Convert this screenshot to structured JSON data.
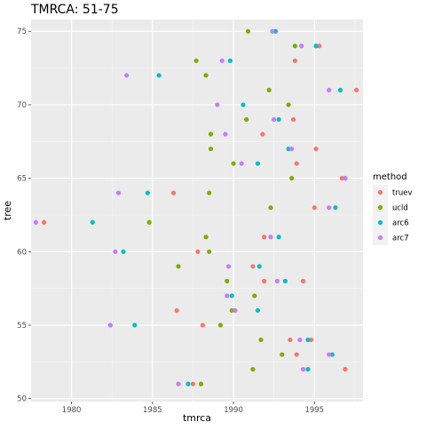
{
  "chart_data": {
    "type": "scatter",
    "title": "TMRCA: 51-75",
    "xlabel": "tmrca",
    "ylabel": "tree",
    "xlim": [
      1977.5,
      1998
    ],
    "ylim": [
      49.8,
      75.8
    ],
    "x_ticks": [
      1980,
      1985,
      1990,
      1995
    ],
    "x_tick_labels": [
      "1980",
      "1985",
      "1990",
      "1995"
    ],
    "y_ticks": [
      50,
      55,
      60,
      65,
      70,
      75
    ],
    "y_tick_labels": [
      "50",
      "55",
      "60",
      "65",
      "70",
      "75"
    ],
    "grid": true,
    "background": "#ebebeb",
    "legend": {
      "title": "method",
      "placement": "right",
      "entries": [
        {
          "name": "truev",
          "color": "#f8766d"
        },
        {
          "name": "ucld",
          "color": "#7cae00"
        },
        {
          "name": "arc6",
          "color": "#00bfc4"
        },
        {
          "name": "arc7",
          "color": "#c77cff"
        }
      ]
    },
    "series": [
      {
        "name": "truev",
        "color": "#f8766d",
        "points": [
          [
            1987.5,
            51
          ],
          [
            1996.9,
            52
          ],
          [
            1993.9,
            53
          ],
          [
            1994.8,
            54
          ],
          [
            1993.5,
            54
          ],
          [
            1988.1,
            55
          ],
          [
            1986.5,
            56
          ],
          [
            1994.3,
            58
          ],
          [
            1991.9,
            58
          ],
          [
            1991.2,
            59
          ],
          [
            1987.8,
            60
          ],
          [
            1991.9,
            61
          ],
          [
            1978.3,
            62
          ],
          [
            1995.0,
            63
          ],
          [
            1986.3,
            64
          ],
          [
            1996.7,
            65
          ],
          [
            1993.9,
            66
          ],
          [
            1995.1,
            67
          ],
          [
            1991.8,
            68
          ],
          [
            1993.7,
            69
          ],
          [
            1997.6,
            71
          ],
          [
            1993.8,
            73
          ],
          [
            1995.3,
            74
          ]
        ]
      },
      {
        "name": "ucld",
        "color": "#7cae00",
        "points": [
          [
            1988.0,
            51
          ],
          [
            1991.2,
            52
          ],
          [
            1993.0,
            53
          ],
          [
            1991.7,
            54
          ],
          [
            1989.2,
            55
          ],
          [
            1989.9,
            56
          ],
          [
            1991.3,
            57
          ],
          [
            1989.6,
            58
          ],
          [
            1986.6,
            59
          ],
          [
            1988.5,
            60
          ],
          [
            1988.3,
            61
          ],
          [
            1984.8,
            62
          ],
          [
            1992.3,
            63
          ],
          [
            1988.5,
            64
          ],
          [
            1993.6,
            65
          ],
          [
            1990.0,
            66
          ],
          [
            1988.6,
            67
          ],
          [
            1988.6,
            68
          ],
          [
            1990.8,
            69
          ],
          [
            1993.4,
            70
          ],
          [
            1992.2,
            71
          ],
          [
            1988.3,
            72
          ],
          [
            1987.7,
            73
          ],
          [
            1993.8,
            74
          ],
          [
            1990.9,
            75
          ]
        ]
      },
      {
        "name": "arc6",
        "color": "#00bfc4",
        "points": [
          [
            1987.2,
            51
          ],
          [
            1994.6,
            52
          ],
          [
            1996.1,
            53
          ],
          [
            1994.6,
            54
          ],
          [
            1983.9,
            55
          ],
          [
            1991.5,
            56
          ],
          [
            1989.9,
            57
          ],
          [
            1993.2,
            58
          ],
          [
            1991.6,
            59
          ],
          [
            1983.2,
            60
          ],
          [
            1992.8,
            61
          ],
          [
            1981.3,
            62
          ],
          [
            1996.3,
            63
          ],
          [
            1984.7,
            64
          ],
          [
            1996.9,
            65
          ],
          [
            1991.5,
            66
          ],
          [
            1993.4,
            67
          ],
          [
            1992.8,
            69
          ],
          [
            1990.6,
            70
          ],
          [
            1996.6,
            71
          ],
          [
            1985.4,
            72
          ],
          [
            1989.8,
            73
          ],
          [
            1995.1,
            74
          ],
          [
            1992.6,
            75
          ]
        ]
      },
      {
        "name": "arc7",
        "color": "#c77cff",
        "points": [
          [
            1986.6,
            51
          ],
          [
            1994.3,
            52
          ],
          [
            1995.9,
            53
          ],
          [
            1994.1,
            54
          ],
          [
            1982.4,
            55
          ],
          [
            1990.1,
            56
          ],
          [
            1989.6,
            57
          ],
          [
            1992.7,
            58
          ],
          [
            1989.7,
            59
          ],
          [
            1982.7,
            60
          ],
          [
            1992.3,
            61
          ],
          [
            1977.8,
            62
          ],
          [
            1995.9,
            63
          ],
          [
            1982.9,
            64
          ],
          [
            1996.9,
            65
          ],
          [
            1990.5,
            66
          ],
          [
            1993.6,
            67
          ],
          [
            1989.5,
            68
          ],
          [
            1992.5,
            69
          ],
          [
            1989.0,
            70
          ],
          [
            1995.9,
            71
          ],
          [
            1983.4,
            72
          ],
          [
            1989.3,
            73
          ],
          [
            1994.2,
            74
          ],
          [
            1992.4,
            75
          ]
        ]
      }
    ]
  }
}
